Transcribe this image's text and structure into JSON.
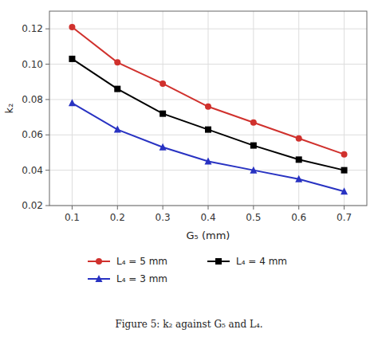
{
  "chart_data": {
    "type": "line",
    "x": [
      0.1,
      0.2,
      0.3,
      0.4,
      0.5,
      0.6,
      0.7
    ],
    "series": [
      {
        "name": "L₄ = 5 mm",
        "color": "#d0312d",
        "marker": "circle",
        "values": [
          0.121,
          0.101,
          0.089,
          0.076,
          0.067,
          0.058,
          0.049
        ]
      },
      {
        "name": "L₄ = 4 mm",
        "color": "#000000",
        "marker": "square",
        "values": [
          0.103,
          0.086,
          0.072,
          0.063,
          0.054,
          0.046,
          0.04
        ]
      },
      {
        "name": "L₄ = 3 mm",
        "color": "#2832c2",
        "marker": "triangle",
        "values": [
          0.078,
          0.063,
          0.053,
          0.045,
          0.04,
          0.035,
          0.028
        ]
      }
    ],
    "x_label": "G₅ (mm)",
    "y_label": "k₂",
    "xlim": [
      0.05,
      0.75
    ],
    "ylim": [
      0.02,
      0.13
    ],
    "xticks": [
      0.1,
      0.2,
      0.3,
      0.4,
      0.5,
      0.6,
      0.7
    ],
    "yticks": [
      0.02,
      0.04,
      0.06,
      0.08,
      {
        "value": 0.1,
        "label": "0.10"
      },
      0.12
    ],
    "grid": true,
    "legend": "bottom",
    "annotations": [
      "Figure 5: k₂ against G₅ and L₄."
    ]
  }
}
